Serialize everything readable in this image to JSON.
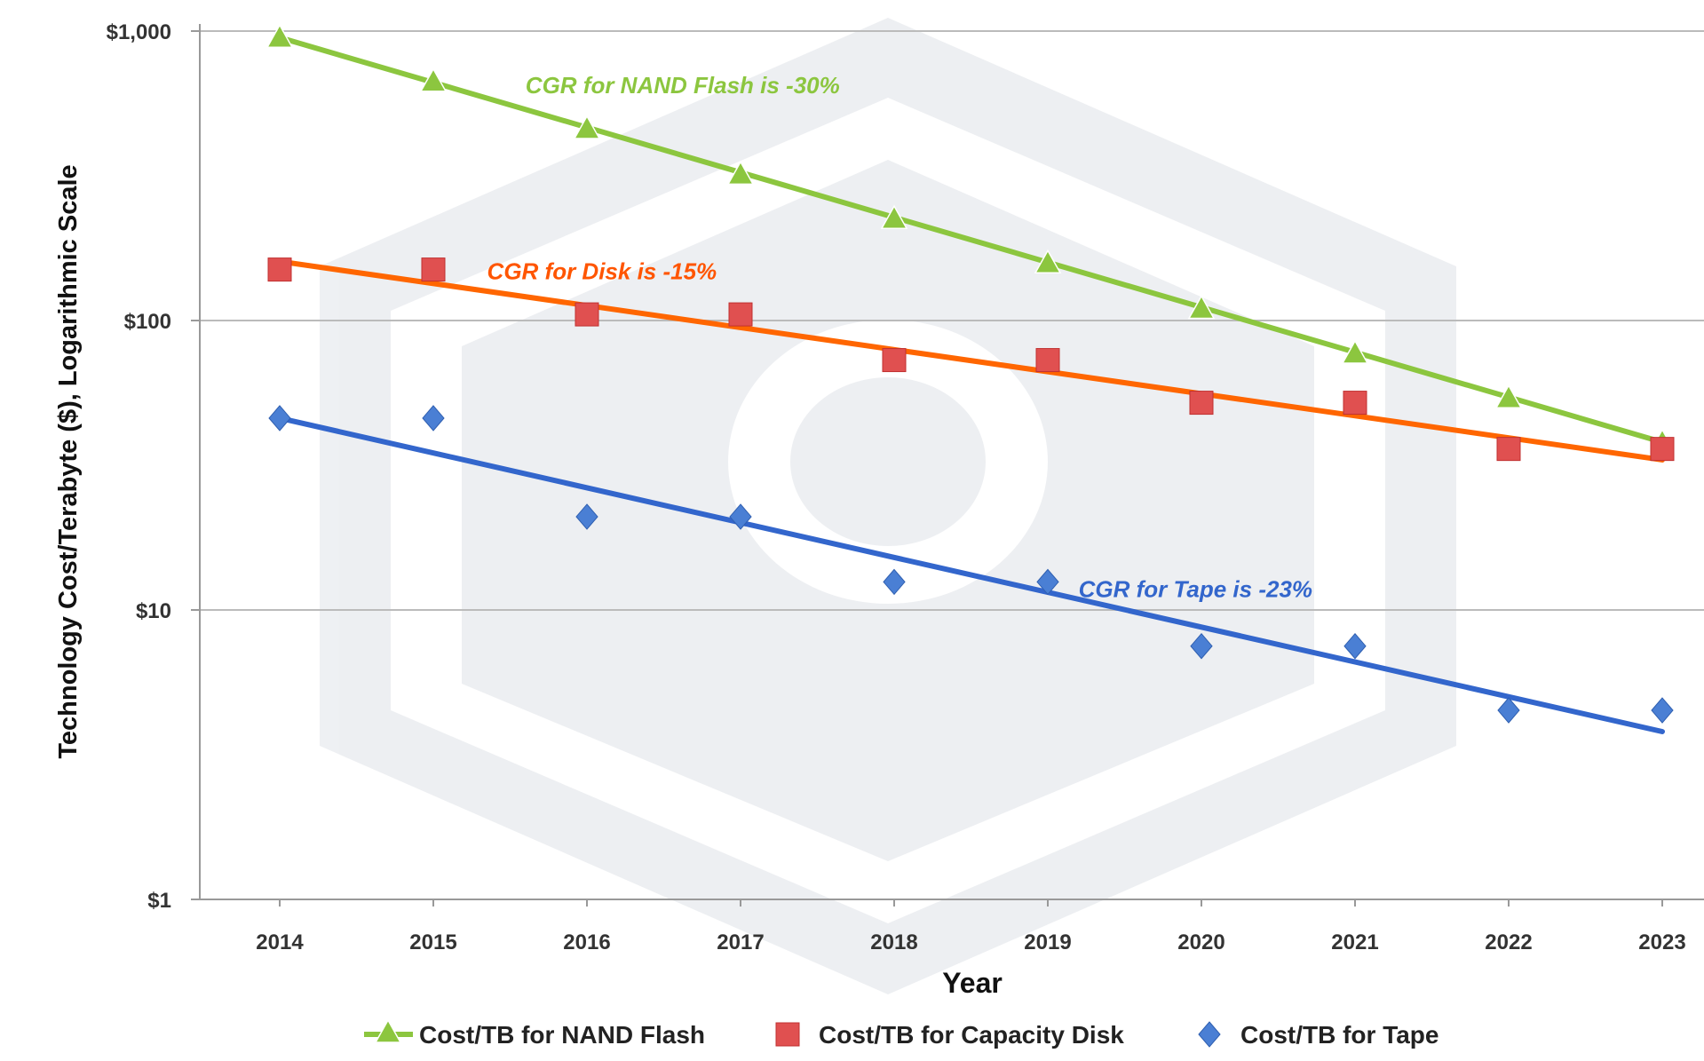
{
  "chart_data": {
    "type": "scatter",
    "title": "",
    "xlabel": "Year",
    "ylabel": "Technology Cost/Terabyte ($), Logarithmic Scale",
    "y_scale": "log",
    "ylim": [
      1,
      1000
    ],
    "y_ticks": [
      {
        "value": 1,
        "label": "$1"
      },
      {
        "value": 10,
        "label": "$10"
      },
      {
        "value": 100,
        "label": "$100"
      },
      {
        "value": 1000,
        "label": "$1,000"
      }
    ],
    "categories": [
      "2014",
      "2015",
      "2016",
      "2017",
      "2018",
      "2019",
      "2020",
      "2021",
      "2022",
      "2023"
    ],
    "grid": true,
    "legend_position": "bottom",
    "series": [
      {
        "name": "Cost/TB for NAND Flash",
        "color": "#8cc63f",
        "marker": "triangle",
        "values": [
          950,
          670,
          460,
          320,
          225,
          158,
          110,
          77,
          54,
          38
        ],
        "trend": {
          "start": 950,
          "end": 38
        }
      },
      {
        "name": "Cost/TB for Capacity Disk",
        "color": "#e05050",
        "line_color": "#ff6600",
        "marker": "square",
        "values": [
          150,
          150,
          105,
          105,
          73,
          73,
          52,
          52,
          36,
          36
        ],
        "trend": {
          "start": 160,
          "end": 33
        }
      },
      {
        "name": "Cost/TB for Tape",
        "color": "#4a7fd4",
        "line_color": "#3366cc",
        "marker": "diamond",
        "values": [
          46,
          46,
          21,
          21,
          12.5,
          12.5,
          7.5,
          7.5,
          4.5,
          4.5
        ],
        "trend": {
          "start": 46,
          "end": 3.8
        }
      }
    ],
    "annotations": [
      {
        "text": "CGR for NAND Flash is -30%",
        "color": "#8cc63f",
        "anchor_year": "2015.6",
        "anchor_value": 650
      },
      {
        "text": "CGR for Disk is -15%",
        "color": "#ff5500",
        "anchor_year": "2015.35",
        "anchor_value": 148
      },
      {
        "text": "CGR for Tape is -23%",
        "color": "#3366cc",
        "anchor_year": "2019.2",
        "anchor_value": 11.8
      }
    ]
  }
}
